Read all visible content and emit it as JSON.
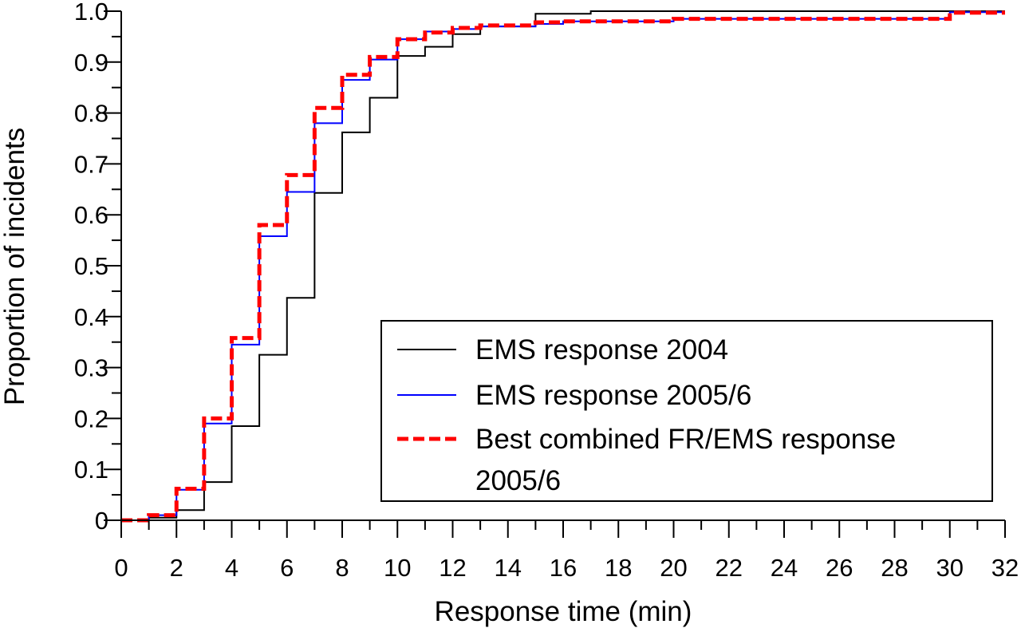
{
  "chart_data": {
    "type": "line",
    "xlabel": "Response time (min)",
    "ylabel": "Proportion of incidents",
    "xlim": [
      0,
      32
    ],
    "ylim": [
      0,
      1.0
    ],
    "x_ticks": [
      "0",
      "2",
      "4",
      "6",
      "8",
      "10",
      "12",
      "14",
      "16",
      "18",
      "20",
      "22",
      "24",
      "26",
      "28",
      "30",
      "32"
    ],
    "y_ticks": [
      "0",
      "0.1",
      "0.2",
      "0.3",
      "0.4",
      "0.5",
      "0.6",
      "0.7",
      "0.8",
      "0.9",
      "1.0"
    ],
    "grid": false,
    "legend_position": "lower-right",
    "series": [
      {
        "name": "EMS response 2004",
        "color": "#000000",
        "style": "solid",
        "step": true,
        "x": [
          0,
          1,
          2,
          3,
          4,
          5,
          6,
          7,
          8,
          9,
          10,
          11,
          12,
          13,
          15,
          17,
          30,
          32
        ],
        "y": [
          0,
          0.005,
          0.02,
          0.075,
          0.185,
          0.325,
          0.437,
          0.643,
          0.762,
          0.83,
          0.912,
          0.93,
          0.955,
          0.97,
          0.995,
          1.0,
          1.0,
          1.0
        ]
      },
      {
        "name": "EMS response 2005/6",
        "color": "#0000ff",
        "style": "solid",
        "step": true,
        "x": [
          0,
          1,
          2,
          3,
          4,
          5,
          6,
          7,
          8,
          9,
          10,
          11,
          12,
          13,
          15,
          16,
          20,
          30,
          32
        ],
        "y": [
          0,
          0.01,
          0.06,
          0.19,
          0.345,
          0.558,
          0.645,
          0.78,
          0.865,
          0.905,
          0.945,
          0.96,
          0.965,
          0.97,
          0.975,
          0.98,
          0.985,
          0.998,
          0.998
        ]
      },
      {
        "name": "Best combined FR/EMS response 2005/6",
        "color": "#ff0000",
        "style": "dashed",
        "step": true,
        "x": [
          0,
          1,
          2,
          3,
          4,
          5,
          6,
          7,
          8,
          9,
          10,
          11,
          12,
          13,
          15,
          16,
          20,
          30,
          32
        ],
        "y": [
          0,
          0.01,
          0.062,
          0.2,
          0.358,
          0.58,
          0.678,
          0.81,
          0.875,
          0.91,
          0.945,
          0.958,
          0.967,
          0.972,
          0.978,
          0.98,
          0.985,
          0.997,
          0.997
        ]
      }
    ],
    "legend": {
      "entries": [
        {
          "lines": [
            "EMS response 2004"
          ]
        },
        {
          "lines": [
            "EMS response 2005/6"
          ]
        },
        {
          "lines": [
            "Best combined FR/EMS response",
            "2005/6"
          ]
        }
      ]
    }
  }
}
